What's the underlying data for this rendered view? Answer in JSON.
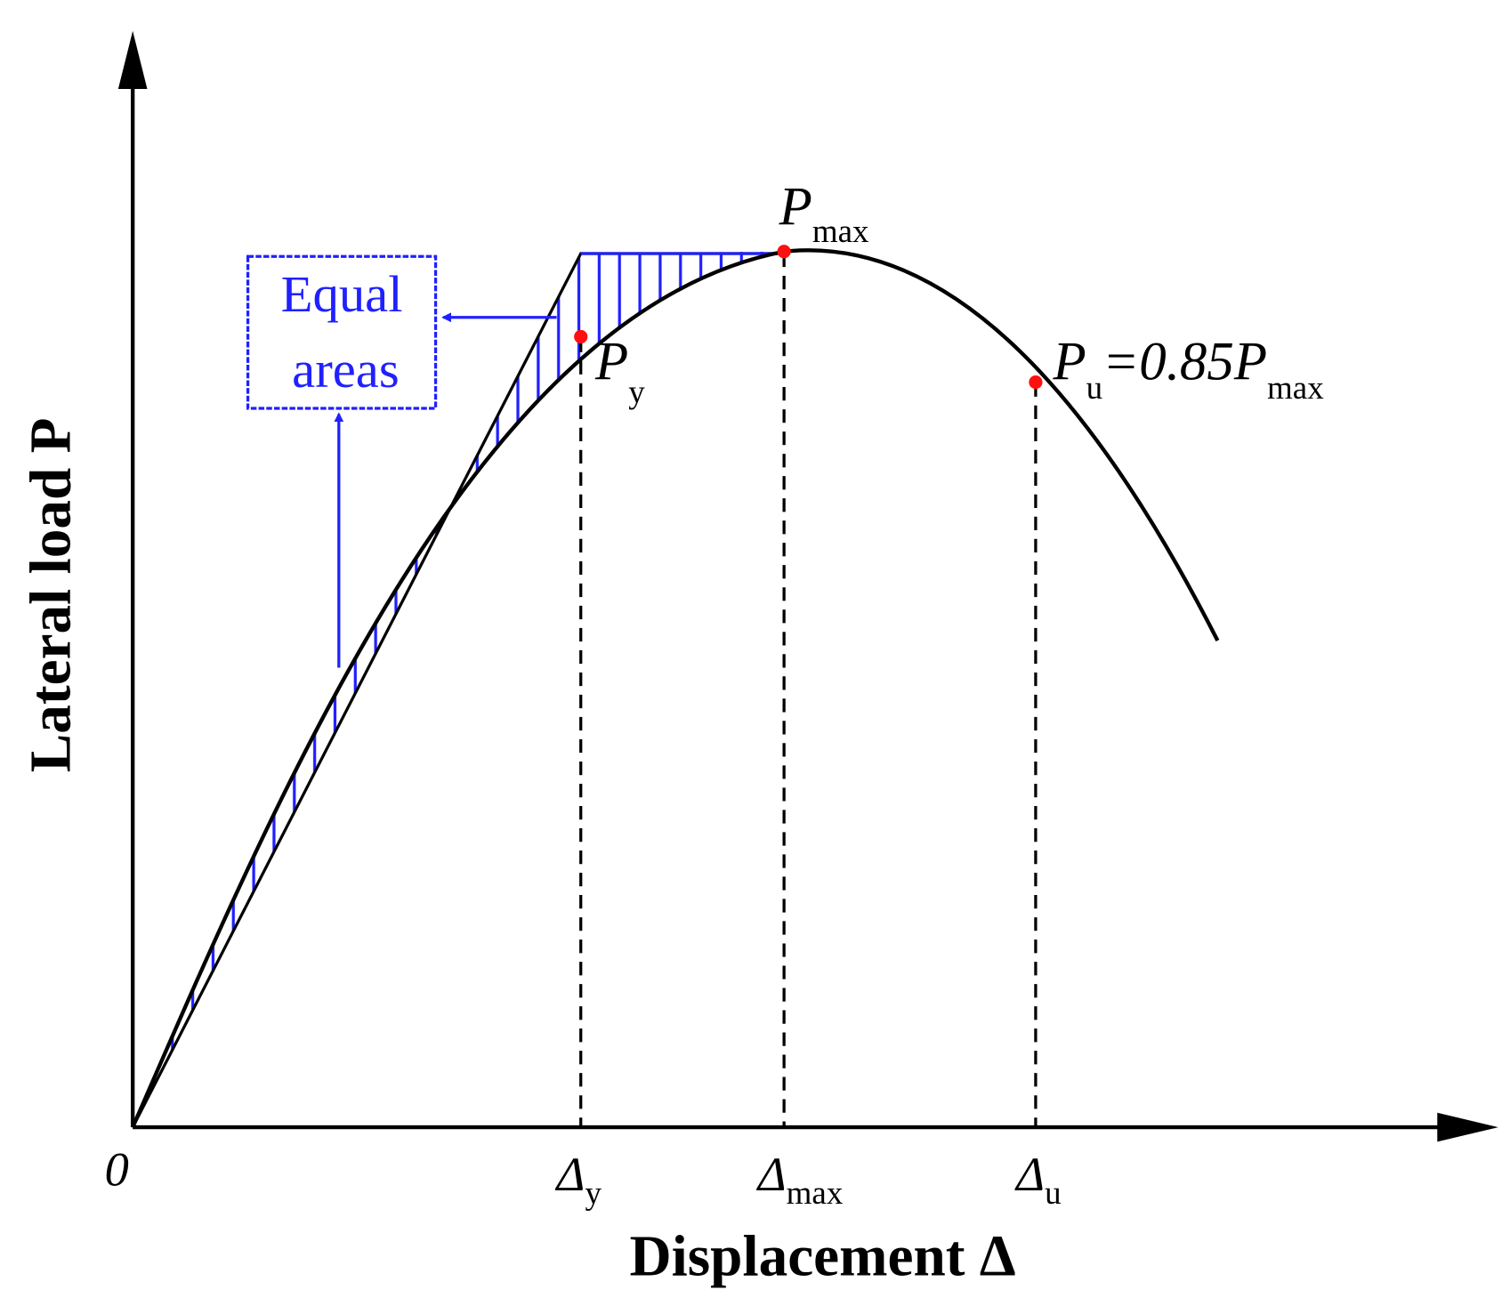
{
  "axes": {
    "x_label": "Displacement Δ",
    "y_label": "Lateral load P",
    "origin": "0"
  },
  "x_ticks": [
    {
      "symbol": "Δ",
      "sub": "y"
    },
    {
      "symbol": "Δ",
      "sub": "max"
    },
    {
      "symbol": "Δ",
      "sub": "u"
    }
  ],
  "points": [
    {
      "symbol": "P",
      "sub": "y"
    },
    {
      "symbol": "P",
      "sub": "max"
    },
    {
      "symbol": "P",
      "sub": "u",
      "rest": "=0.85",
      "symbol2": "P",
      "sub2": "max"
    }
  ],
  "annotation": {
    "lines": [
      "Equal",
      "areas"
    ]
  }
}
